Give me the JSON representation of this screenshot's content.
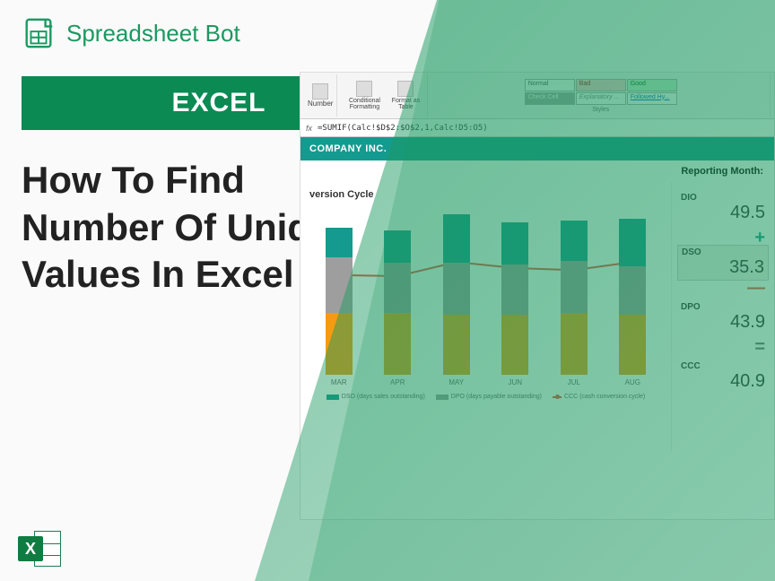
{
  "brand": {
    "name": "Spreadsheet Bot",
    "color": "#1a9960"
  },
  "banner": {
    "label": "EXCEL",
    "bg": "#0b8a54"
  },
  "headline": "How To Find Number Of Unique Values In Excel",
  "ribbon": {
    "number_label": "Number",
    "cond_fmt": "Conditional Formatting",
    "fmt_table": "Format as Table",
    "styles_label": "Styles",
    "styles": {
      "normal": "Normal",
      "bad": "Bad",
      "good": "Good",
      "check": "Check Cell",
      "expl": "Explanatory ...",
      "link": "Followed Hy..."
    }
  },
  "formula": {
    "fx": "fx",
    "text": "=SUMIF(Calc!$D$2:$O$2,1,Calc!D5:O5)"
  },
  "company": "COMPANY INC.",
  "report_label": "Reporting Month:",
  "chart": {
    "title": "version Cycle",
    "categories": [
      "MAR",
      "APR",
      "MAY",
      "JUN",
      "JUL",
      "AUG"
    ],
    "series": {
      "dso": {
        "label": "DSO (days sales outstanding)",
        "color": "#159a8f",
        "values": [
          30,
          32,
          48,
          42,
          40,
          48
        ]
      },
      "dpo": {
        "label": "DPO (days payable outstanding)",
        "color": "#9e9e9e",
        "values": [
          55,
          50,
          52,
          50,
          52,
          48
        ]
      },
      "dio": {
        "label": "DIO",
        "color": "#f39c12",
        "values": [
          62,
          62,
          60,
          60,
          62,
          60
        ]
      },
      "ccc": {
        "label": "CCC (cash conversion cycle)",
        "color": "#e74c3c",
        "values": [
          95,
          94,
          108,
          102,
          100,
          108
        ]
      }
    },
    "ymax": 170
  },
  "kpis": {
    "dio": {
      "label": "DIO",
      "value": "49.5"
    },
    "dso": {
      "label": "DSO",
      "value": "35.3"
    },
    "dpo": {
      "label": "DPO",
      "value": "43.9"
    },
    "ccc": {
      "label": "CCC",
      "value": "40.9"
    }
  },
  "corner_logo": "X"
}
